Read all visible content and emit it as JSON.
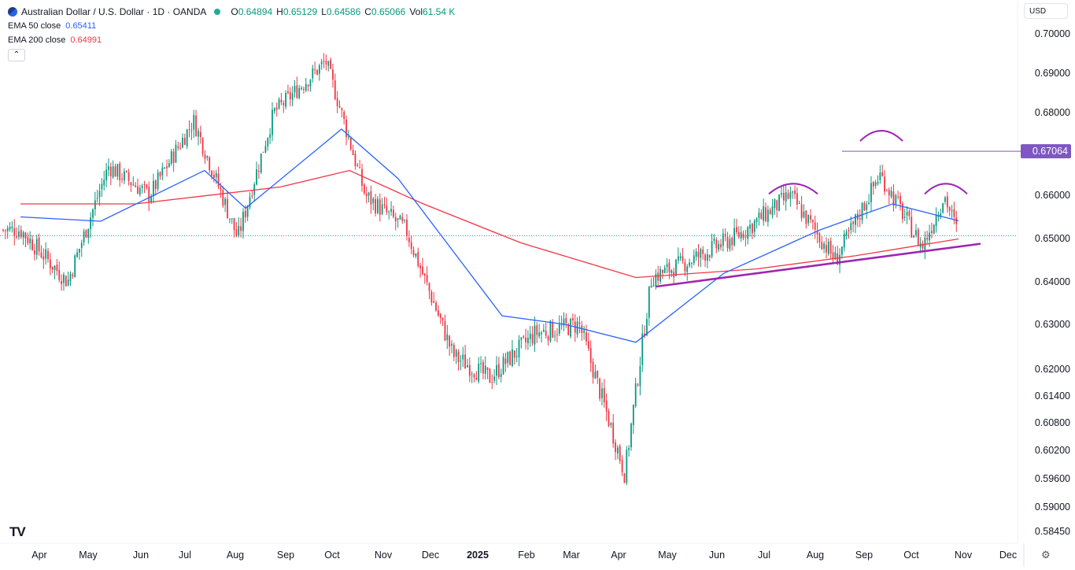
{
  "header": {
    "symbol": "Australian Dollar / U.S. Dollar · 1D · OANDA",
    "open_label": "O",
    "open": "0.64894",
    "high_label": "H",
    "high": "0.65129",
    "low_label": "L",
    "low": "0.64586",
    "close_label": "C",
    "close": "0.65066",
    "vol_label": "Vol",
    "vol": "61.54 K"
  },
  "indicators": [
    {
      "label": "EMA 50 close",
      "value": "0.65411",
      "color": "#2962ff"
    },
    {
      "label": "EMA 200 close",
      "value": "0.64991",
      "color": "#f23645"
    }
  ],
  "collapse_icon": "chevron-up-icon",
  "currency_button": "USD",
  "logo_text": "TV",
  "price_tag": {
    "value": "0.67064",
    "color": "#7e57c2"
  },
  "chart_data": {
    "type": "candlestick",
    "y_ticks": [
      "0.70000",
      "0.69000",
      "0.68000",
      "0.66000",
      "0.65000",
      "0.64000",
      "0.63000",
      "0.62000",
      "0.61400",
      "0.60800",
      "0.60200",
      "0.59600",
      "0.59000",
      "0.58450"
    ],
    "x_labels": [
      "Apr",
      "May",
      "Jun",
      "Jul",
      "Aug",
      "Sep",
      "Oct",
      "Nov",
      "Dec",
      "2025",
      "Feb",
      "Mar",
      "Apr",
      "May",
      "Jun",
      "Jul",
      "Aug",
      "Sep",
      "Oct",
      "Nov",
      "Dec"
    ],
    "ohlc": {
      "open": 0.64894,
      "high": 0.65129,
      "low": 0.64586,
      "close": 0.65066,
      "volume": "61.54 K"
    },
    "series_close_approx": [
      {
        "t": "2024-03-20",
        "v": 0.652
      },
      {
        "t": "2024-04-19",
        "v": 0.64
      },
      {
        "t": "2024-05-15",
        "v": 0.667
      },
      {
        "t": "2024-06-10",
        "v": 0.66
      },
      {
        "t": "2024-07-08",
        "v": 0.678
      },
      {
        "t": "2024-08-05",
        "v": 0.65
      },
      {
        "t": "2024-08-28",
        "v": 0.68
      },
      {
        "t": "2024-09-30",
        "v": 0.693
      },
      {
        "t": "2024-10-25",
        "v": 0.66
      },
      {
        "t": "2024-11-20",
        "v": 0.652
      },
      {
        "t": "2024-12-20",
        "v": 0.623
      },
      {
        "t": "2025-01-12",
        "v": 0.618
      },
      {
        "t": "2025-02-10",
        "v": 0.628
      },
      {
        "t": "2025-03-10",
        "v": 0.63
      },
      {
        "t": "2025-04-08",
        "v": 0.597
      },
      {
        "t": "2025-04-25",
        "v": 0.641
      },
      {
        "t": "2025-05-20",
        "v": 0.645
      },
      {
        "t": "2025-06-20",
        "v": 0.651
      },
      {
        "t": "2025-07-22",
        "v": 0.66
      },
      {
        "t": "2025-08-20",
        "v": 0.645
      },
      {
        "t": "2025-09-17",
        "v": 0.665
      },
      {
        "t": "2025-10-14",
        "v": 0.648
      },
      {
        "t": "2025-10-28",
        "v": 0.66
      },
      {
        "t": "2025-11-06",
        "v": 0.6507
      }
    ],
    "ema50_approx": [
      {
        "t": "2024-03-20",
        "v": 0.655
      },
      {
        "t": "2024-05-10",
        "v": 0.654
      },
      {
        "t": "2024-07-15",
        "v": 0.666
      },
      {
        "t": "2024-08-10",
        "v": 0.657
      },
      {
        "t": "2024-10-10",
        "v": 0.676
      },
      {
        "t": "2024-11-15",
        "v": 0.664
      },
      {
        "t": "2025-01-20",
        "v": 0.632
      },
      {
        "t": "2025-03-01",
        "v": 0.63
      },
      {
        "t": "2025-04-15",
        "v": 0.626
      },
      {
        "t": "2025-06-10",
        "v": 0.642
      },
      {
        "t": "2025-08-10",
        "v": 0.652
      },
      {
        "t": "2025-09-25",
        "v": 0.658
      },
      {
        "t": "2025-11-06",
        "v": 0.65411
      }
    ],
    "ema200_approx": [
      {
        "t": "2024-03-20",
        "v": 0.658
      },
      {
        "t": "2024-06-01",
        "v": 0.658
      },
      {
        "t": "2024-09-01",
        "v": 0.662
      },
      {
        "t": "2024-10-15",
        "v": 0.666
      },
      {
        "t": "2024-12-01",
        "v": 0.658
      },
      {
        "t": "2025-02-01",
        "v": 0.649
      },
      {
        "t": "2025-04-15",
        "v": 0.641
      },
      {
        "t": "2025-07-01",
        "v": 0.643
      },
      {
        "t": "2025-09-01",
        "v": 0.646
      },
      {
        "t": "2025-11-06",
        "v": 0.64991
      }
    ],
    "annotations": {
      "resistance_level": 0.67064,
      "trendline": [
        {
          "t": "2025-04-28",
          "v": 0.6389
        },
        {
          "t": "2025-11-20",
          "v": 0.6488
        }
      ],
      "current_price_line": 0.65066,
      "arcs": [
        "left-shoulder",
        "head",
        "right-shoulder"
      ]
    }
  }
}
